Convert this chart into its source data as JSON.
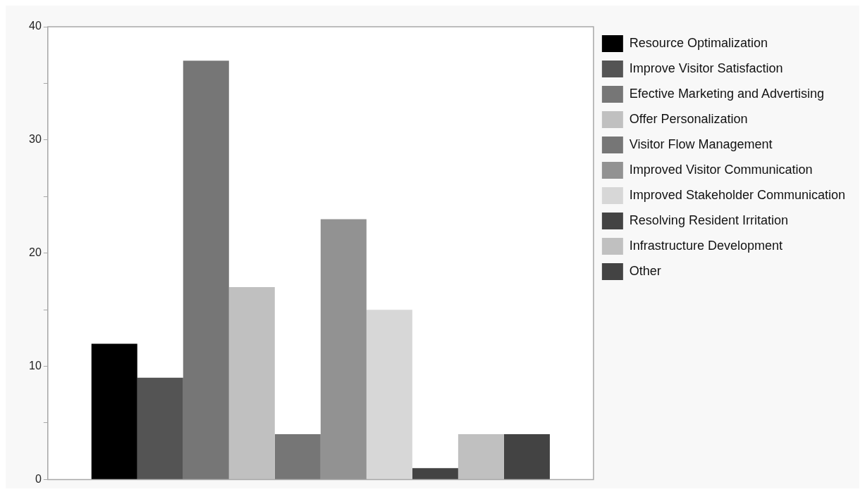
{
  "chart_data": {
    "type": "bar",
    "categories": [
      null
    ],
    "series": [
      {
        "name": "Resource Optimalization",
        "color": "#000000",
        "values": [
          12
        ]
      },
      {
        "name": "Improve Visitor Satisfaction",
        "color": "#545454",
        "values": [
          9
        ]
      },
      {
        "name": "Efective Marketing and Advertising",
        "color": "#767676",
        "values": [
          37
        ]
      },
      {
        "name": "Offer Personalization",
        "color": "#c0c0c0",
        "values": [
          17
        ]
      },
      {
        "name": "Visitor Flow Management",
        "color": "#767676",
        "values": [
          4
        ]
      },
      {
        "name": "Improved Visitor Communication",
        "color": "#929292",
        "values": [
          23
        ]
      },
      {
        "name": "Improved Stakeholder Communication",
        "color": "#d7d7d7",
        "values": [
          15
        ]
      },
      {
        "name": "Resolving Resident Irritation",
        "color": "#434343",
        "values": [
          1
        ]
      },
      {
        "name": "Infrastructure Development",
        "color": "#c0c0c0",
        "values": [
          4
        ]
      },
      {
        "name": "Other",
        "color": "#434343",
        "values": [
          4
        ]
      }
    ],
    "ylim": [
      0,
      40
    ],
    "yticks": [
      0,
      {
        "value": 5,
        "label": null
      },
      10,
      {
        "value": 15,
        "label": null
      },
      20,
      {
        "value": 25,
        "label": null
      },
      30,
      {
        "value": 35,
        "label": null
      },
      40
    ],
    "legend": "top right"
  }
}
